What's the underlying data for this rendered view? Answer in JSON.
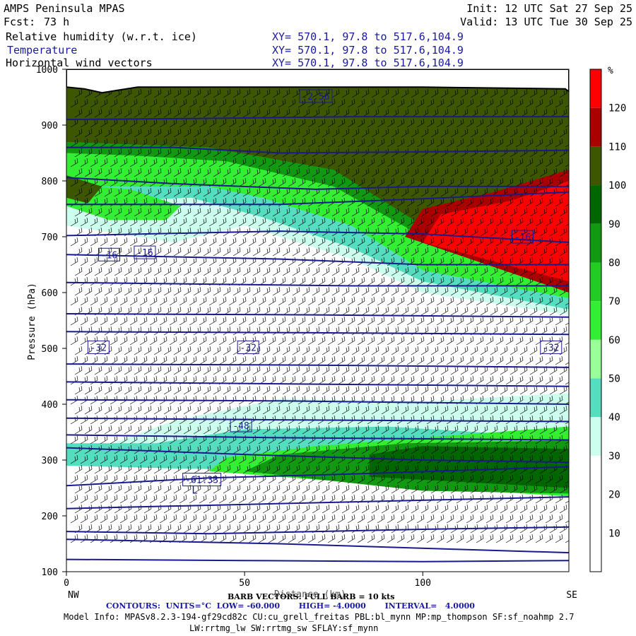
{
  "header": {
    "model": "AMPS Peninsula MPAS",
    "init": "Init: 12 UTC Sat 27 Sep 25",
    "fcst_label": "Fcst:",
    "fcst_value": "73 h",
    "valid": "Valid: 13 UTC Tue 30 Sep 25",
    "fields": [
      {
        "name": "Relative humidity (w.r.t. ice)",
        "xy": "XY= 570.1, 97.8 to 517.6,104.9"
      },
      {
        "name": "Temperature",
        "xy": "XY= 570.1, 97.8 to 517.6,104.9"
      },
      {
        "name": "Horizontal wind vectors",
        "xy": "XY= 570.1, 97.8 to 517.6,104.9"
      }
    ]
  },
  "footer": {
    "barb_note": "BARB VECTORS: FULL BARB = 10 kts",
    "xaxis_note": "Distance (km)",
    "contours": "CONTOURS:  UNITS=°C  LOW= -60.000       HIGH= -4.0000       INTERVAL=   4.0000",
    "model_info_1": "Model Info: MPASv8.2.3-194-gf29cd82c CU:cu_grell_freitas PBL:bl_mynn MP:mp_thompson SF:sf_noahmp 2.7",
    "model_info_2": "LW:rrtmg_lw SW:rrtmg_sw SFLAY:sf_mynn"
  },
  "colors": {
    "temperature": "#1a1a8c",
    "terrain": "#ffffff"
  },
  "chart_data": {
    "type": "heatmap",
    "title": "Relative humidity (w.r.t. ice)",
    "xlabel": "Distance (km)",
    "ylabel": "Pressure (hPa)",
    "x_ticks": [
      "0",
      "50",
      "100"
    ],
    "x_range": [
      0,
      141
    ],
    "x_endpoints": [
      "NW",
      "SE"
    ],
    "y_ticks": [
      "100",
      "200",
      "300",
      "400",
      "500",
      "600",
      "700",
      "800",
      "900",
      "1000"
    ],
    "y_range": [
      1000,
      100
    ],
    "colorbar": {
      "unit": "%",
      "ticks": [
        "120",
        "110",
        "100",
        "90",
        "80",
        "70",
        "60",
        "50",
        "40",
        "30",
        "20",
        "10"
      ],
      "bins": [
        {
          "range": "0-10",
          "color": "#ffffff"
        },
        {
          "range": "10-20",
          "color": "#ffffff"
        },
        {
          "range": "20-30",
          "color": "#ffffff"
        },
        {
          "range": "30-40",
          "color": "#ccffee"
        },
        {
          "range": "40-50",
          "color": "#55ddc0"
        },
        {
          "range": "50-60",
          "color": "#99ff99"
        },
        {
          "range": "60-70",
          "color": "#33ee33"
        },
        {
          "range": "70-80",
          "color": "#22cc22"
        },
        {
          "range": "80-90",
          "color": "#119911"
        },
        {
          "range": "90-100",
          "color": "#006600"
        },
        {
          "range": "100-110",
          "color": "#3d5700"
        },
        {
          "range": "110-120",
          "color": "#aa0000"
        },
        {
          "range": ">120",
          "color": "#ff0000"
        }
      ]
    },
    "rh_regions": [
      {
        "bin": "30-40",
        "poly": [
          [
            0,
            290
          ],
          [
            60,
            285
          ],
          [
            141,
            270
          ],
          [
            141,
            420
          ],
          [
            100,
            405
          ],
          [
            60,
            410
          ],
          [
            30,
            370
          ],
          [
            0,
            300
          ]
        ]
      },
      {
        "bin": "40-50",
        "poly": [
          [
            0,
            290
          ],
          [
            30,
            285
          ],
          [
            80,
            280
          ],
          [
            141,
            255
          ],
          [
            141,
            340
          ],
          [
            90,
            360
          ],
          [
            50,
            355
          ],
          [
            25,
            330
          ],
          [
            0,
            330
          ]
        ]
      },
      {
        "bin": "60-70",
        "poly": [
          [
            40,
            280
          ],
          [
            90,
            255
          ],
          [
            141,
            235
          ],
          [
            141,
            360
          ],
          [
            100,
            340
          ],
          [
            70,
            325
          ],
          [
            45,
            305
          ]
        ]
      },
      {
        "bin": "80-90",
        "poly": [
          [
            50,
            280
          ],
          [
            100,
            245
          ],
          [
            141,
            240
          ],
          [
            141,
            335
          ],
          [
            95,
            330
          ],
          [
            60,
            310
          ]
        ]
      },
      {
        "bin": "90-100",
        "poly": [
          [
            85,
            270
          ],
          [
            141,
            250
          ],
          [
            141,
            320
          ],
          [
            100,
            325
          ],
          [
            85,
            310
          ]
        ]
      },
      {
        "bin": "30-40",
        "poly": [
          [
            50,
            720
          ],
          [
            80,
            660
          ],
          [
            100,
            600
          ],
          [
            141,
            560
          ],
          [
            141,
            1000
          ],
          [
            0,
            1000
          ],
          [
            0,
            720
          ],
          [
            30,
            690
          ]
        ]
      },
      {
        "bin": "40-50",
        "poly": [
          [
            55,
            735
          ],
          [
            80,
            680
          ],
          [
            100,
            620
          ],
          [
            141,
            570
          ],
          [
            141,
            1000
          ],
          [
            0,
            1000
          ],
          [
            0,
            760
          ],
          [
            35,
            770
          ]
        ]
      },
      {
        "bin": "60-70",
        "poly": [
          [
            55,
            770
          ],
          [
            80,
            720
          ],
          [
            100,
            640
          ],
          [
            141,
            590
          ],
          [
            141,
            1000
          ],
          [
            0,
            1000
          ],
          [
            0,
            790
          ],
          [
            40,
            790
          ]
        ]
      },
      {
        "bin": "80-90",
        "poly": [
          [
            45,
            835
          ],
          [
            75,
            790
          ],
          [
            100,
            700
          ],
          [
            141,
            640
          ],
          [
            141,
            1000
          ],
          [
            0,
            1000
          ],
          [
            0,
            850
          ],
          [
            20,
            845
          ]
        ]
      },
      {
        "bin": "100-110",
        "poly": [
          [
            40,
            860
          ],
          [
            75,
            820
          ],
          [
            100,
            720
          ],
          [
            141,
            660
          ],
          [
            141,
            1000
          ],
          [
            0,
            1000
          ],
          [
            0,
            870
          ]
        ]
      },
      {
        "bin": "30-40",
        "poly": [
          [
            0,
            740
          ],
          [
            10,
            715
          ],
          [
            30,
            715
          ],
          [
            36,
            740
          ],
          [
            20,
            780
          ],
          [
            0,
            790
          ]
        ]
      },
      {
        "bin": "60-70",
        "poly": [
          [
            0,
            755
          ],
          [
            12,
            730
          ],
          [
            28,
            730
          ],
          [
            32,
            755
          ],
          [
            18,
            785
          ],
          [
            0,
            795
          ]
        ]
      },
      {
        "bin": "100-110",
        "poly": [
          [
            0,
            770
          ],
          [
            6,
            760
          ],
          [
            10,
            790
          ],
          [
            0,
            810
          ]
        ]
      },
      {
        "bin": "110-120",
        "poly": [
          [
            95,
            700
          ],
          [
            141,
            600
          ],
          [
            141,
            820
          ],
          [
            120,
            780
          ],
          [
            100,
            750
          ]
        ]
      },
      {
        "bin": ">120",
        "poly": [
          [
            100,
            690
          ],
          [
            141,
            620
          ],
          [
            141,
            800
          ],
          [
            125,
            765
          ],
          [
            105,
            740
          ]
        ]
      }
    ],
    "temperature_contours": {
      "lows": [
        {
          "label": "L",
          "x": 36,
          "p": 240
        }
      ],
      "labels": [
        {
          "text": "-61.33",
          "x": 38,
          "p": 265
        },
        {
          "text": "-48",
          "x": 49,
          "p": 362
        },
        {
          "text": "-32",
          "x": 9,
          "p": 502
        },
        {
          "text": "-32",
          "x": 51,
          "p": 502
        },
        {
          "text": "-32",
          "x": 136,
          "p": 502
        },
        {
          "text": "-16",
          "x": 12,
          "p": 668
        },
        {
          "text": "-16",
          "x": 22,
          "p": 672
        },
        {
          "text": "-16",
          "x": 128,
          "p": 700
        },
        {
          "text": "-2.56",
          "x": 70,
          "p": 952
        }
      ],
      "lines": [
        [
          [
            0,
            122
          ],
          [
            50,
            120
          ],
          [
            100,
            118
          ],
          [
            141,
            120
          ]
        ],
        [
          [
            0,
            158
          ],
          [
            60,
            150
          ],
          [
            110,
            140
          ],
          [
            141,
            134
          ]
        ],
        [
          [
            0,
            172
          ],
          [
            40,
            168
          ],
          [
            100,
            176
          ],
          [
            141,
            180
          ]
        ],
        [
          [
            0,
            213
          ],
          [
            60,
            222
          ],
          [
            100,
            228
          ],
          [
            141,
            234
          ]
        ],
        [
          [
            0,
            254
          ],
          [
            40,
            268
          ],
          [
            80,
            275
          ],
          [
            141,
            288
          ]
        ],
        [
          [
            0,
            322
          ],
          [
            50,
            310
          ],
          [
            100,
            300
          ],
          [
            141,
            296
          ]
        ],
        [
          [
            0,
            345
          ],
          [
            60,
            340
          ],
          [
            141,
            336
          ]
        ],
        [
          [
            0,
            375
          ],
          [
            60,
            372
          ],
          [
            141,
            369
          ]
        ],
        [
          [
            0,
            408
          ],
          [
            60,
            406
          ],
          [
            141,
            400
          ]
        ],
        [
          [
            0,
            440
          ],
          [
            70,
            436
          ],
          [
            141,
            432
          ]
        ],
        [
          [
            0,
            472
          ],
          [
            70,
            470
          ],
          [
            141,
            466
          ]
        ],
        [
          [
            0,
            530
          ],
          [
            70,
            528
          ],
          [
            141,
            525
          ]
        ],
        [
          [
            0,
            562
          ],
          [
            70,
            560
          ],
          [
            141,
            556
          ]
        ],
        [
          [
            0,
            618
          ],
          [
            80,
            612
          ],
          [
            141,
            612
          ]
        ],
        [
          [
            0,
            668
          ],
          [
            60,
            660
          ],
          [
            100,
            650
          ],
          [
            141,
            650
          ]
        ],
        [
          [
            0,
            702
          ],
          [
            60,
            710
          ],
          [
            100,
            705
          ],
          [
            141,
            690
          ]
        ],
        [
          [
            0,
            758
          ],
          [
            60,
            758
          ],
          [
            100,
            768
          ],
          [
            141,
            780
          ]
        ],
        [
          [
            0,
            806
          ],
          [
            30,
            795
          ],
          [
            70,
            785
          ],
          [
            100,
            790
          ],
          [
            141,
            790
          ]
        ],
        [
          [
            0,
            860
          ],
          [
            30,
            860
          ],
          [
            60,
            850
          ],
          [
            100,
            852
          ],
          [
            141,
            855
          ]
        ],
        [
          [
            0,
            910
          ],
          [
            40,
            912
          ],
          [
            80,
            915
          ],
          [
            141,
            915
          ]
        ]
      ]
    },
    "wind_barbs": "Horizontal wind vectors",
    "terrain_surface": [
      [
        0,
        968
      ],
      [
        5,
        965
      ],
      [
        10,
        958
      ],
      [
        14,
        962
      ],
      [
        20,
        968
      ],
      [
        60,
        968
      ],
      [
        100,
        968
      ],
      [
        140,
        965
      ],
      [
        141,
        960
      ]
    ]
  }
}
